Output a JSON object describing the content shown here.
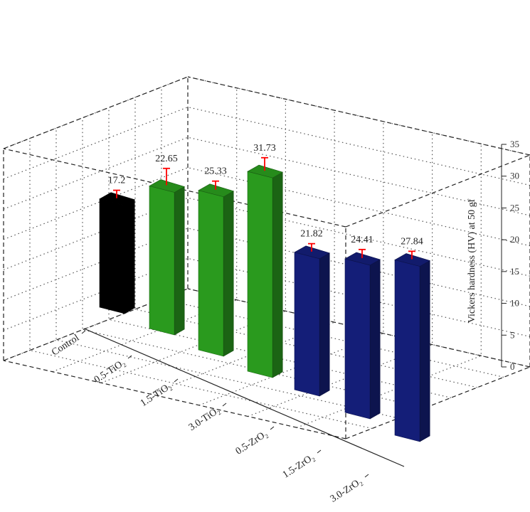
{
  "chart_data": {
    "type": "bar",
    "categories": [
      "Control",
      "0.5-TiO₂",
      "1.5-TiO₂",
      "3.0-TiO₂",
      "0.5-ZrO₂",
      "1.5-ZrO₂",
      "3.0-ZrO₂"
    ],
    "values": [
      17.2,
      22.65,
      25.33,
      31.73,
      21.82,
      24.41,
      27.84
    ],
    "value_labels": [
      "17.2",
      "22.65",
      "25.33",
      "31.73",
      "21.82",
      "24.41",
      "27.84"
    ],
    "error": [
      0.8,
      2.2,
      0.9,
      1.6,
      0.8,
      0.9,
      0.8
    ],
    "colors": [
      "#000000",
      "#2a9a1e",
      "#2a9a1e",
      "#2a9a1e",
      "#141e78",
      "#141e78",
      "#141e78"
    ],
    "error_color": "#ff0000",
    "zlabel": "Vickers hardness (HV) at 50 gf",
    "zlim": [
      0,
      35
    ],
    "zticks": [
      0,
      5,
      10,
      15,
      20,
      25,
      30,
      35
    ],
    "grid": true,
    "projection": "3d"
  }
}
